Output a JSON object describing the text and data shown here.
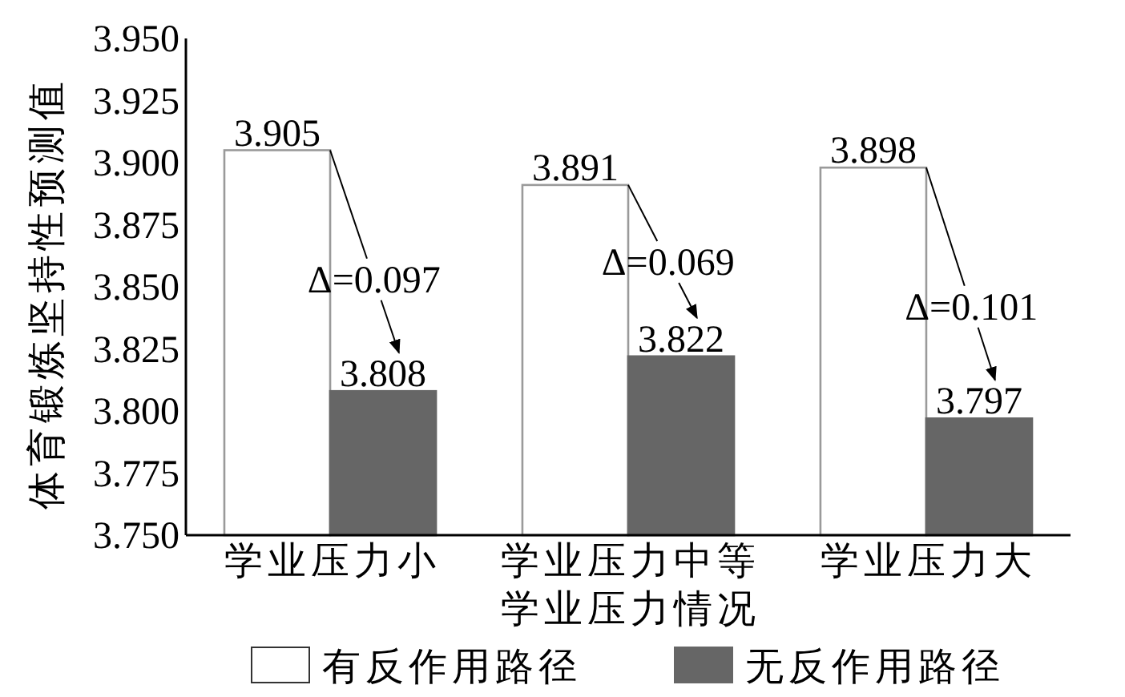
{
  "chart_data": {
    "type": "bar",
    "xlabel": "学业压力情况",
    "ylabel": "体育锻炼坚持性预测值",
    "categories": [
      "学业压力小",
      "学业压力中等",
      "学业压力大"
    ],
    "series": [
      {
        "name": "有反作用路径",
        "color": "#ffffff",
        "values": [
          3.905,
          3.891,
          3.898
        ]
      },
      {
        "name": "无反作用路径",
        "color": "#666666",
        "values": [
          3.808,
          3.822,
          3.797
        ]
      }
    ],
    "ylim": [
      3.75,
      3.95
    ],
    "yticks": [
      {
        "value": 3.75,
        "label": "3.750"
      },
      {
        "value": 3.775,
        "label": "3.775"
      },
      {
        "value": 3.8,
        "label": "3.800"
      },
      {
        "value": 3.825,
        "label": "3.825"
      },
      {
        "value": 3.85,
        "label": "3.850"
      },
      {
        "value": 3.875,
        "label": "3.875"
      },
      {
        "value": 3.9,
        "label": "3.900"
      },
      {
        "value": 3.925,
        "label": "3.925"
      },
      {
        "value": 3.95,
        "label": "3.950"
      }
    ],
    "data_labels": true,
    "legend": "bottom",
    "annotations": [
      {
        "text": "Δ=0.097",
        "x": "学业压力小",
        "y": 3.853
      },
      {
        "text": "Δ=0.069",
        "x": "学业压力中等",
        "y": 3.86
      },
      {
        "text": "Δ=0.101",
        "x": "学业压力大",
        "y": 3.842
      }
    ]
  }
}
